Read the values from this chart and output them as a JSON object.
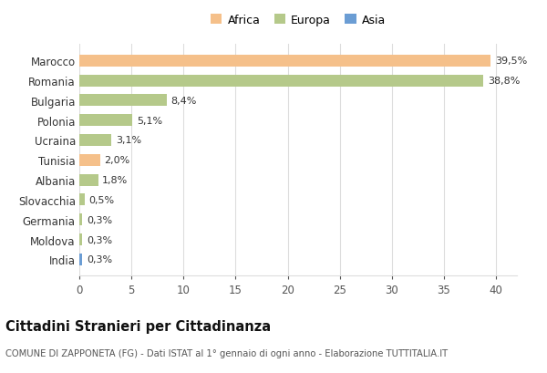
{
  "countries": [
    "Marocco",
    "Romania",
    "Bulgaria",
    "Polonia",
    "Ucraina",
    "Tunisia",
    "Albania",
    "Slovacchia",
    "Germania",
    "Moldova",
    "India"
  ],
  "values": [
    39.5,
    38.8,
    8.4,
    5.1,
    3.1,
    2.0,
    1.8,
    0.5,
    0.3,
    0.3,
    0.3
  ],
  "labels": [
    "39,5%",
    "38,8%",
    "8,4%",
    "5,1%",
    "3,1%",
    "2,0%",
    "1,8%",
    "0,5%",
    "0,3%",
    "0,3%",
    "0,3%"
  ],
  "colors": [
    "#f5c08a",
    "#b5c98a",
    "#b5c98a",
    "#b5c98a",
    "#b5c98a",
    "#f5c08a",
    "#b5c98a",
    "#b5c98a",
    "#b5c98a",
    "#b5c98a",
    "#6b9dd4"
  ],
  "legend_labels": [
    "Africa",
    "Europa",
    "Asia"
  ],
  "legend_colors": [
    "#f5c08a",
    "#b5c98a",
    "#6b9dd4"
  ],
  "xlim": [
    0,
    42
  ],
  "xticks": [
    0,
    5,
    10,
    15,
    20,
    25,
    30,
    35,
    40
  ],
  "title": "Cittadini Stranieri per Cittadinanza",
  "subtitle": "COMUNE DI ZAPPONETA (FG) - Dati ISTAT al 1° gennaio di ogni anno - Elaborazione TUTTITALIA.IT",
  "background_color": "#ffffff",
  "grid_color": "#dddddd"
}
